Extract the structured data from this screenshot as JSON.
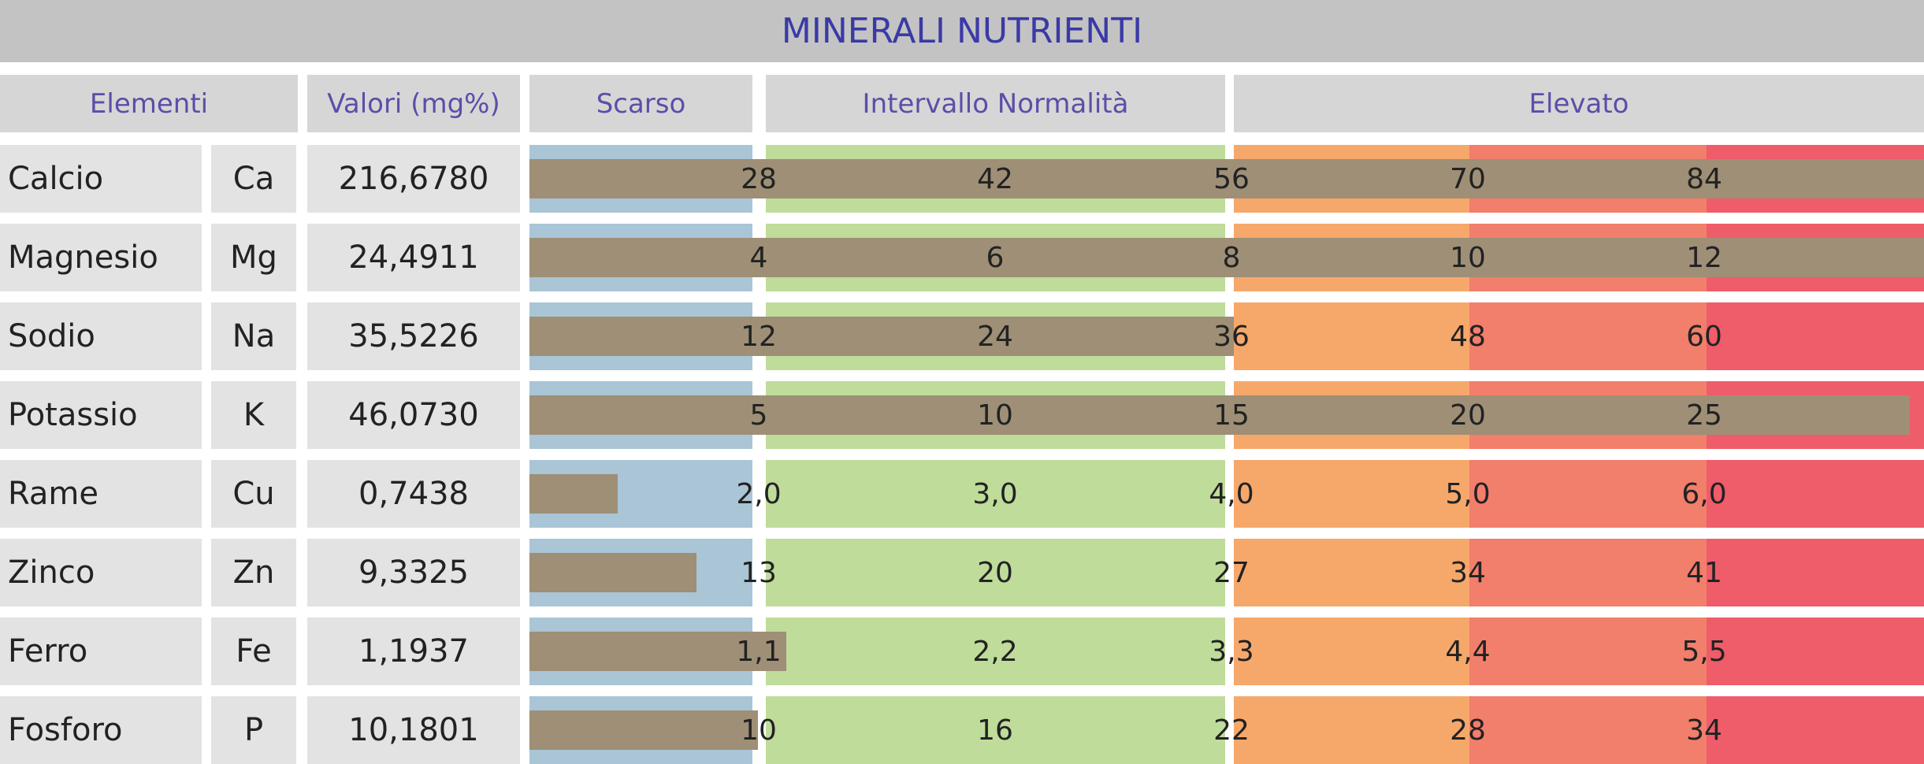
{
  "title": "MINERALI NUTRIENTI",
  "headers": {
    "elementi": "Elementi",
    "valori": "Valori (mg%)",
    "scarso": "Scarso",
    "normalita": "Intervallo Normalità",
    "elevato": "Elevato"
  },
  "colors": {
    "scarso": "#a9c5d6",
    "normal": "#bfdc9a",
    "high1": "#f6a86b",
    "high2": "#f27e6c",
    "high3": "#ef5c6a",
    "bar": "#9e8f76",
    "title_text": "#3a3aa6",
    "header_text": "#5b4ea8"
  },
  "chart_data": {
    "type": "bar",
    "orientation": "horizontal",
    "categories": [
      "Calcio",
      "Magnesio",
      "Sodio",
      "Potassio",
      "Rame",
      "Zinco",
      "Ferro",
      "Fosforo"
    ],
    "rows": [
      {
        "name": "Calcio",
        "symbol": "Ca",
        "value": "216,6780",
        "ticks": [
          "28",
          "42",
          "56",
          "70",
          "84"
        ],
        "bar_fraction": 1.0
      },
      {
        "name": "Magnesio",
        "symbol": "Mg",
        "value": "24,4911",
        "ticks": [
          "4",
          "6",
          "8",
          "10",
          "12"
        ],
        "bar_fraction": 1.0
      },
      {
        "name": "Sodio",
        "symbol": "Na",
        "value": "35,5226",
        "ticks": [
          "12",
          "24",
          "36",
          "48",
          "60"
        ],
        "bar_fraction": 0.505
      },
      {
        "name": "Potassio",
        "symbol": "K",
        "value": "46,0730",
        "ticks": [
          "5",
          "10",
          "15",
          "20",
          "25"
        ],
        "bar_fraction": 0.99
      },
      {
        "name": "Rame",
        "symbol": "Cu",
        "value": "0,7438",
        "ticks": [
          "2,0",
          "3,0",
          "4,0",
          "5,0",
          "6,0"
        ],
        "bar_fraction": 0.063
      },
      {
        "name": "Zinco",
        "symbol": "Zn",
        "value": "9,3325",
        "ticks": [
          "13",
          "20",
          "27",
          "34",
          "41"
        ],
        "bar_fraction": 0.12
      },
      {
        "name": "Ferro",
        "symbol": "Fe",
        "value": "1,1937",
        "ticks": [
          "1,1",
          "2,2",
          "3,3",
          "4,4",
          "5,5"
        ],
        "bar_fraction": 0.184
      },
      {
        "name": "Fosforo",
        "symbol": "P",
        "value": "10,1801",
        "ticks": [
          "10",
          "16",
          "22",
          "28",
          "34"
        ],
        "bar_fraction": 0.164
      }
    ]
  }
}
